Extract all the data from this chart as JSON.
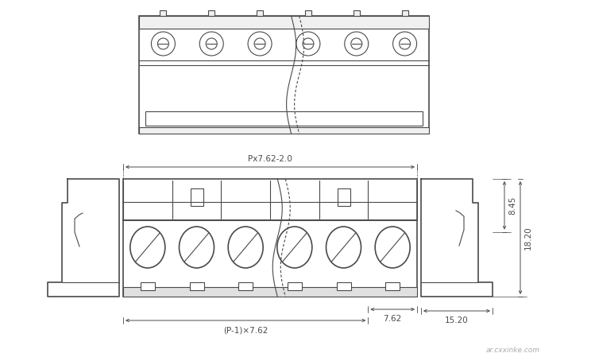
{
  "bg_color": "#ffffff",
  "lc": "#4a4a4a",
  "lw": 0.8,
  "lwt": 1.2,
  "watermark": "ar.cxxinke.com",
  "dim_Px762": "Px7.62-2.0",
  "dim_P1x762": "(P-1)×7.62",
  "dim_762": "7.62",
  "dim_845": "8.45",
  "dim_1820": "18.20",
  "dim_1520": "15.20",
  "n_poles": 6,
  "fc_body": "#ffffff",
  "fc_strip": "#f0f0f0",
  "fc_dark": "#e0e0e0"
}
